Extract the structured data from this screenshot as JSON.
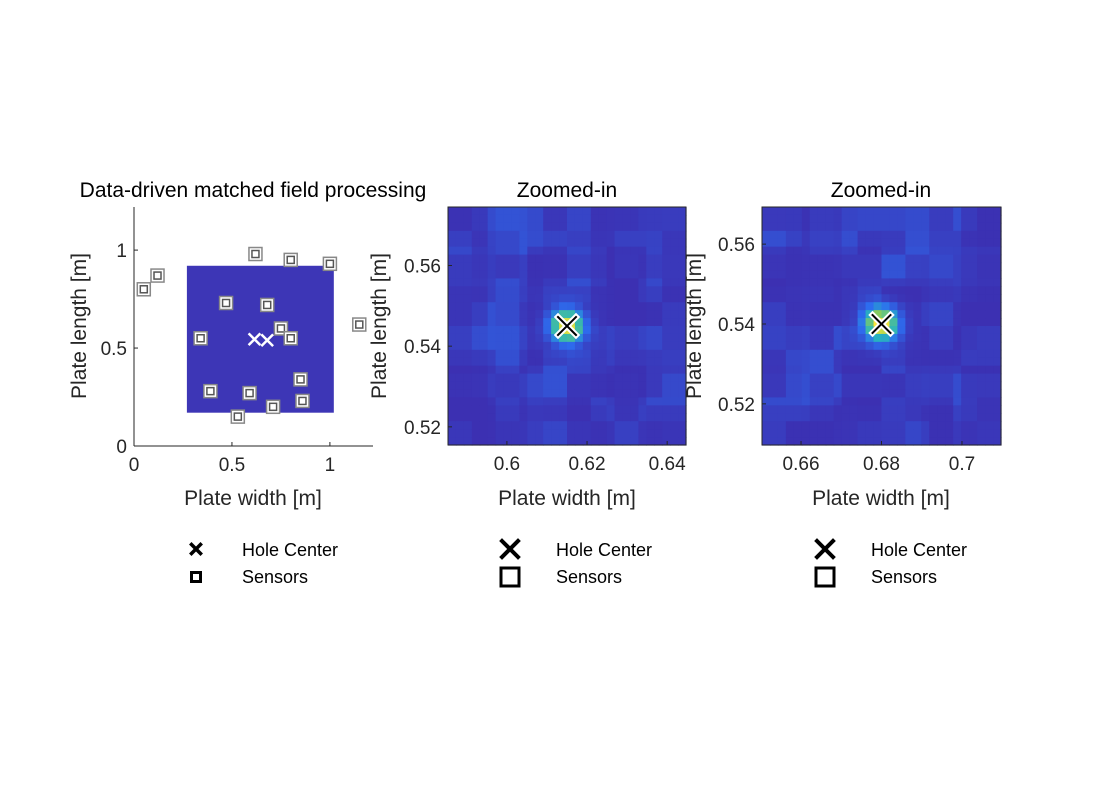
{
  "colors": {
    "field_background": "#3d36b6",
    "heat_low": "#3e26a8",
    "heat_mid": "#2fb6b6",
    "heat_high": "#f9e53a",
    "marker": "#000000",
    "marker_on_field": "#ffffff",
    "sensor_ring": "#888888",
    "axes": "#262626"
  },
  "chart_data": [
    {
      "type": "scatter",
      "title": "Data-driven matched field processing",
      "xlabel": "Plate width [m]",
      "ylabel": "Plate length [m]",
      "xlim": [
        0,
        1.22
      ],
      "ylim": [
        0,
        1.22
      ],
      "x_ticks": [
        0,
        0.5,
        1
      ],
      "x_tick_labels": [
        "0",
        "0.5",
        "1"
      ],
      "y_ticks": [
        0,
        0.5,
        1
      ],
      "y_tick_labels": [
        "0",
        "0.5",
        "1"
      ],
      "field_region": {
        "x": [
          0.27,
          1.02
        ],
        "y": [
          0.17,
          0.92
        ]
      },
      "hole_centers": [
        {
          "x": 0.615,
          "y": 0.545
        },
        {
          "x": 0.68,
          "y": 0.54
        }
      ],
      "sensors_inside": [
        {
          "x": 0.47,
          "y": 0.73
        },
        {
          "x": 0.68,
          "y": 0.72
        },
        {
          "x": 0.75,
          "y": 0.6
        },
        {
          "x": 0.34,
          "y": 0.55
        },
        {
          "x": 0.8,
          "y": 0.55
        },
        {
          "x": 0.85,
          "y": 0.34
        },
        {
          "x": 0.39,
          "y": 0.28
        },
        {
          "x": 0.59,
          "y": 0.27
        },
        {
          "x": 0.71,
          "y": 0.2
        },
        {
          "x": 0.86,
          "y": 0.23
        }
      ],
      "sensors_outside": [
        {
          "x": 0.05,
          "y": 0.8
        },
        {
          "x": 0.12,
          "y": 0.87
        },
        {
          "x": 0.62,
          "y": 0.98
        },
        {
          "x": 0.8,
          "y": 0.95
        },
        {
          "x": 1.0,
          "y": 0.93
        },
        {
          "x": 1.15,
          "y": 0.62
        },
        {
          "x": 0.53,
          "y": 0.15
        }
      ],
      "legend": [
        "Hole Center",
        "Sensors"
      ]
    },
    {
      "type": "heatmap",
      "title": "Zoomed-in",
      "xlabel": "Plate width [m]",
      "ylabel": "Plate length [m]",
      "xlim": [
        0.5853,
        0.6447
      ],
      "ylim": [
        0.5155,
        0.5745
      ],
      "x_ticks": [
        0.6,
        0.62,
        0.64
      ],
      "x_tick_labels": [
        "0.6",
        "0.62",
        "0.64"
      ],
      "y_ticks": [
        0.52,
        0.54,
        0.56
      ],
      "y_tick_labels": [
        "0.52",
        "0.54",
        "0.56"
      ],
      "peak": {
        "x": 0.615,
        "y": 0.545
      },
      "hole_center": {
        "x": 0.615,
        "y": 0.545
      },
      "legend": [
        "Hole Center",
        "Sensors"
      ]
    },
    {
      "type": "heatmap",
      "title": "Zoomed-in",
      "xlabel": "Plate width [m]",
      "ylabel": "Plate length [m]",
      "xlim": [
        0.6503,
        0.7097
      ],
      "ylim": [
        0.5097,
        0.5693
      ],
      "x_ticks": [
        0.66,
        0.68,
        0.7
      ],
      "x_tick_labels": [
        "0.66",
        "0.68",
        "0.7"
      ],
      "y_ticks": [
        0.52,
        0.54,
        0.56
      ],
      "y_tick_labels": [
        "0.52",
        "0.54",
        "0.56"
      ],
      "peak": {
        "x": 0.68,
        "y": 0.54
      },
      "hole_center": {
        "x": 0.68,
        "y": 0.54
      },
      "legend": [
        "Hole Center",
        "Sensors"
      ]
    }
  ]
}
